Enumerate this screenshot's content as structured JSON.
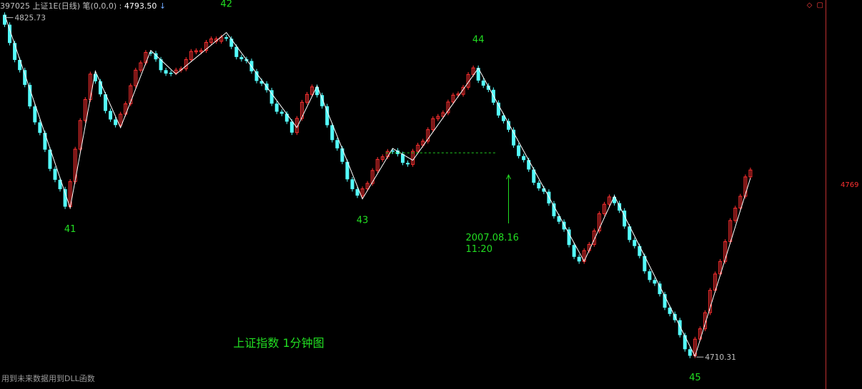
{
  "header": {
    "code": "397025",
    "name": "上证1E(日线)",
    "indicator": "笔(0,0,0)",
    "value_text": "4793.50",
    "arrow": "↓"
  },
  "window_icons": [
    "diamond-icon",
    "restore-icon"
  ],
  "footer_note": "用到未来数据用到DLL函数",
  "colors": {
    "up": "#ff3030",
    "down": "#54fcfc",
    "stroke_line": "#ffffff",
    "label": "#22dd22",
    "price_axis": "#c03030",
    "background": "#000000"
  },
  "chart_data": {
    "type": "candlestick",
    "title": "上证指数 1分钟图",
    "ylim": [
      4700,
      4830
    ],
    "max_label": "4825.73",
    "min_label": "4710.31",
    "price_tick": "4769",
    "annotation": {
      "lines": [
        "2007.08.16",
        "11:20"
      ],
      "at_candle": 100,
      "points_to": 4774
    },
    "dashed_level": {
      "value": 4779.5,
      "from_candle": 76,
      "to_candle": 98
    },
    "bi_vertices": [
      {
        "i": 0,
        "price": 4826,
        "label": ""
      },
      {
        "i": 13,
        "price": 4761,
        "label": "41"
      },
      {
        "i": 18,
        "price": 4807,
        "label": ""
      },
      {
        "i": 23,
        "price": 4788,
        "label": ""
      },
      {
        "i": 29,
        "price": 4814,
        "label": ""
      },
      {
        "i": 34,
        "price": 4806,
        "label": ""
      },
      {
        "i": 44,
        "price": 4820,
        "label": "42"
      },
      {
        "i": 58,
        "price": 4788,
        "label": ""
      },
      {
        "i": 62,
        "price": 4802,
        "label": ""
      },
      {
        "i": 71,
        "price": 4764,
        "label": "43"
      },
      {
        "i": 77,
        "price": 4781,
        "label": ""
      },
      {
        "i": 81,
        "price": 4777,
        "label": ""
      },
      {
        "i": 94,
        "price": 4808,
        "label": "44"
      },
      {
        "i": 115,
        "price": 4743,
        "label": ""
      },
      {
        "i": 121,
        "price": 4765,
        "label": ""
      },
      {
        "i": 137,
        "price": 4711,
        "label": "45"
      },
      {
        "i": 148,
        "price": 4771,
        "label": ""
      }
    ]
  }
}
